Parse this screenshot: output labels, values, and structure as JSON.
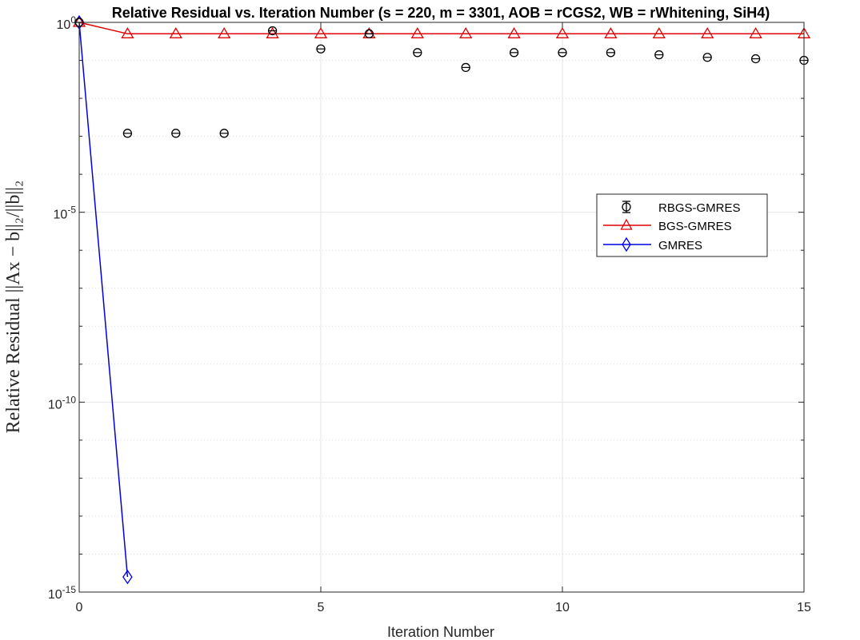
{
  "chart_data": {
    "type": "scatter",
    "title": "Relative Residual vs. Iteration Number (s = 220, m = 3301, AOB = rCGS2, WB = rWhitening, SiH4)",
    "xlabel": "Iteration Number",
    "ylabel": "Relative Residual ||Ax − b||₂/||b||₂",
    "xlim": [
      0,
      15
    ],
    "ylim_log10": [
      -15,
      0
    ],
    "yscale": "log",
    "grid": true,
    "legend_position": "right-upper-middle",
    "x_ticks": [
      "0",
      "5",
      "10",
      "15"
    ],
    "y_ticks": [
      {
        "base": "10",
        "exp": "0"
      },
      {
        "base": "10",
        "exp": "-5"
      },
      {
        "base": "10",
        "exp": "-10"
      },
      {
        "base": "10",
        "exp": "-15"
      }
    ],
    "series": [
      {
        "name": "RBGS-GMRES",
        "color": "#000000",
        "marker": "circle-errorbar",
        "x": [
          0,
          1,
          2,
          3,
          4,
          5,
          6,
          7,
          8,
          9,
          10,
          11,
          12,
          13,
          14,
          15
        ],
        "y": [
          1.0,
          0.0012,
          0.0012,
          0.0012,
          0.6,
          0.2,
          0.5,
          0.16,
          0.065,
          0.16,
          0.16,
          0.16,
          0.14,
          0.12,
          0.11,
          0.1
        ]
      },
      {
        "name": "BGS-GMRES",
        "color": "#e00000",
        "marker": "triangle",
        "x": [
          0,
          1,
          2,
          3,
          4,
          5,
          6,
          7,
          8,
          9,
          10,
          11,
          12,
          13,
          14,
          15
        ],
        "y": [
          1.0,
          0.5,
          0.5,
          0.5,
          0.5,
          0.5,
          0.5,
          0.5,
          0.5,
          0.5,
          0.5,
          0.5,
          0.5,
          0.5,
          0.5,
          0.5
        ]
      },
      {
        "name": "GMRES",
        "color": "#0000e0",
        "marker": "diamond",
        "x": [
          0,
          1
        ],
        "y": [
          1.0,
          2.5e-15
        ]
      }
    ]
  }
}
